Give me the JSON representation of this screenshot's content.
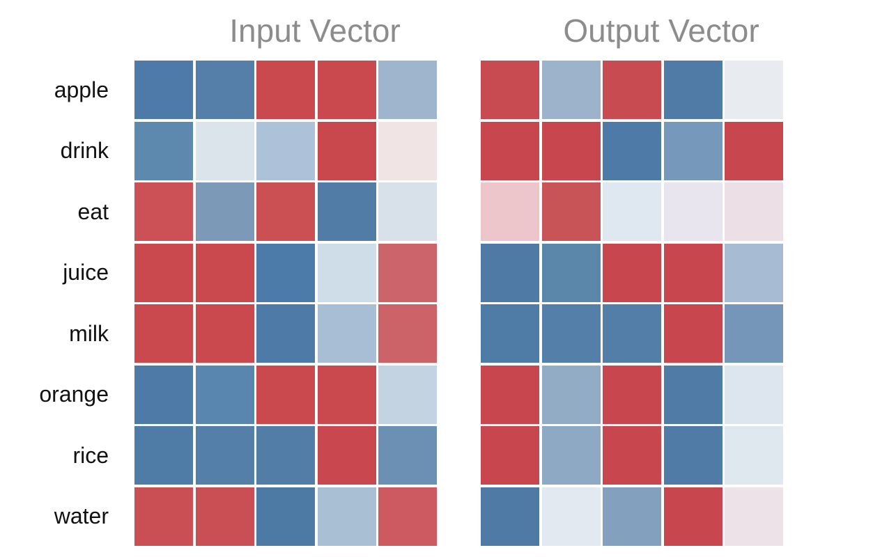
{
  "figure": {
    "background": "#ffffff",
    "title_color": "#8c8c8c",
    "label_color": "#111111",
    "grid_line_color": "#ffffff"
  },
  "chart_data": [
    {
      "type": "heatmap",
      "title": "Input Vector",
      "rows": [
        "apple",
        "drink",
        "eat",
        "juice",
        "milk",
        "orange",
        "rice",
        "water"
      ],
      "n_cols": 5,
      "colormap": "diverging red-blue, color-encoded only (no colorbar, no numeric labels shown)",
      "legend": "none",
      "cell_colors": [
        [
          "#4d7aa8",
          "#557fa8",
          "#c9494f",
          "#c9494f",
          "#9fb5cd"
        ],
        [
          "#5d89ae",
          "#dbe3eb",
          "#adc2d8",
          "#c9484e",
          "#f0e4e4"
        ],
        [
          "#cb5156",
          "#7c9ab8",
          "#ca5053",
          "#517ca6",
          "#d8e1e9"
        ],
        [
          "#c9494f",
          "#c9494f",
          "#4d7ba9",
          "#cfdde9",
          "#cc646b"
        ],
        [
          "#c9494f",
          "#c9494f",
          "#4d7aa6",
          "#a7bed5",
          "#cb6369"
        ],
        [
          "#4d7aa6",
          "#5886af",
          "#c9494f",
          "#c9494f",
          "#c3d3e2"
        ],
        [
          "#4f7ca7",
          "#547fa8",
          "#517da7",
          "#c9474e",
          "#6c90b4"
        ],
        [
          "#c94f55",
          "#c94f55",
          "#4d7aa5",
          "#a9bfd4",
          "#cd5a60"
        ]
      ]
    },
    {
      "type": "heatmap",
      "title": "Output Vector",
      "rows": [
        "apple",
        "drink",
        "eat",
        "juice",
        "milk",
        "orange",
        "rice",
        "water"
      ],
      "n_cols": 5,
      "colormap": "diverging red-blue, color-encoded only (no colorbar, no numeric labels shown)",
      "legend": "none",
      "cell_colors": [
        [
          "#c84b51",
          "#9db3cb",
          "#c84b51",
          "#4f7ba6",
          "#e8ebef"
        ],
        [
          "#c8474e",
          "#c8474e",
          "#4d7aa6",
          "#7698bb",
          "#c8474e"
        ],
        [
          "#ecc6ca",
          "#c85458",
          "#dfe7f0",
          "#e8e5ee",
          "#ece0e6"
        ],
        [
          "#4e7aa5",
          "#5b87ab",
          "#c8474e",
          "#c8474e",
          "#a7bcd2"
        ],
        [
          "#4f7ca7",
          "#547fa8",
          "#527ea7",
          "#c8474f",
          "#7596b9"
        ],
        [
          "#c8474e",
          "#93acc5",
          "#c8474e",
          "#4f7ba6",
          "#dde5ee"
        ],
        [
          "#c8474e",
          "#8ea9c4",
          "#c8474e",
          "#4f7ba6",
          "#dfe8ee"
        ],
        [
          "#4e7aa5",
          "#e3e9f0",
          "#83a1bf",
          "#c8474e",
          "#ece2e8"
        ]
      ]
    }
  ]
}
